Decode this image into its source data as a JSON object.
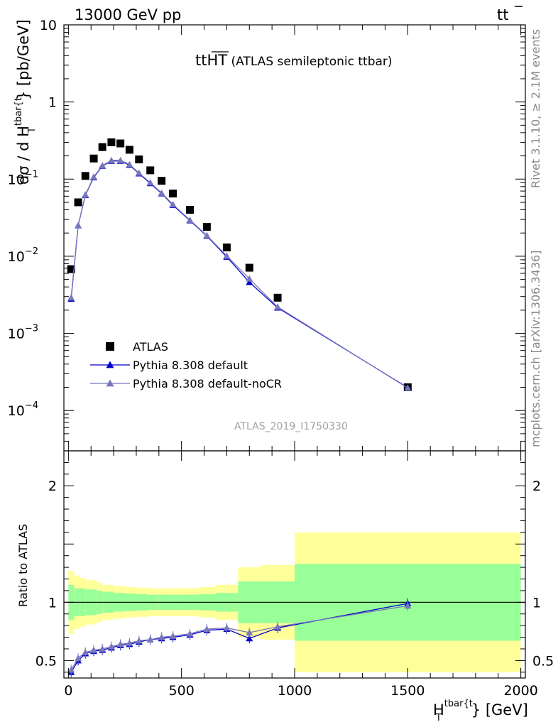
{
  "header": {
    "left": "13000 GeV pp",
    "right_main": "tt",
    "right_bar": "t"
  },
  "main_panel": {
    "title_prefix": "tt",
    "title_overline": "HT",
    "title_suffix": " (ATLAS semileptonic ttbar)",
    "ylabel": "dσ / d H",
    "ylabel_sub": "T",
    "ylabel_sup": "tbar{t",
    "ylabel_tail": "} [pb/GeV]",
    "y_ticks": [
      {
        "value": 10,
        "label": "10"
      },
      {
        "value": 1,
        "label": "1"
      },
      {
        "value": 0.1,
        "label": "10",
        "exp": "−1"
      },
      {
        "value": 0.01,
        "label": "10",
        "exp": "−2"
      },
      {
        "value": 0.001,
        "label": "10",
        "exp": "−3"
      },
      {
        "value": 0.0001,
        "label": "10",
        "exp": "−4"
      }
    ],
    "watermark": "ATLAS_2019_I1750330"
  },
  "side_labels": {
    "top": "Rivet 3.1.10, ≥ 2.1M events",
    "bottom": "mcplots.cern.ch [arXiv:1306.3436]"
  },
  "legend": {
    "position": "bottom-left",
    "entries": [
      {
        "label": "ATLAS"
      },
      {
        "label": "Pythia 8.308 default"
      },
      {
        "label": "Pythia 8.308 default-noCR"
      }
    ]
  },
  "ratio_panel": {
    "ylabel": "Ratio to ATLAS",
    "y_ticks": [
      {
        "value": 0.5,
        "label": "0.5"
      },
      {
        "value": 1,
        "label": "1"
      },
      {
        "value": 2,
        "label": "2"
      }
    ]
  },
  "x_axis": {
    "label_main": "H",
    "label_sub": "T",
    "label_sup": "tbar{t",
    "label_tail": "} [GeV]",
    "ticks": [
      {
        "value": 0,
        "label": "0"
      },
      {
        "value": 500,
        "label": "500"
      },
      {
        "value": 1000,
        "label": "1000"
      },
      {
        "value": 1500,
        "label": "1500"
      },
      {
        "value": 2000,
        "label": "2000"
      }
    ]
  },
  "colors": {
    "data": "#000000",
    "default": "#0000cc",
    "nocr": "#7777bb",
    "band_inner": "#99ff99",
    "band_outer": "#ffff99"
  },
  "chart_data": {
    "type": "scatter",
    "x_range": [
      -20,
      2020
    ],
    "y_range": [
      3e-05,
      10
    ],
    "y_scale": "log",
    "ratio_range": [
      0.35,
      2.3
    ],
    "bins": [
      {
        "lo": 0,
        "hi": 25
      },
      {
        "lo": 25,
        "hi": 50
      },
      {
        "lo": 50,
        "hi": 75
      },
      {
        "lo": 75,
        "hi": 125
      },
      {
        "lo": 125,
        "hi": 150
      },
      {
        "lo": 150,
        "hi": 200
      },
      {
        "lo": 200,
        "hi": 250
      },
      {
        "lo": 250,
        "hi": 300
      },
      {
        "lo": 300,
        "hi": 350
      },
      {
        "lo": 350,
        "hi": 400
      },
      {
        "lo": 400,
        "hi": 450
      },
      {
        "lo": 450,
        "hi": 500
      },
      {
        "lo": 500,
        "hi": 575
      },
      {
        "lo": 575,
        "hi": 650
      },
      {
        "lo": 650,
        "hi": 750
      },
      {
        "lo": 750,
        "hi": 850
      },
      {
        "lo": 850,
        "hi": 1000
      },
      {
        "lo": 1000,
        "hi": 2000
      }
    ],
    "series": [
      {
        "name": "ATLAS",
        "style": "data",
        "x": [
          12,
          43,
          75,
          112,
          150,
          190,
          230,
          270,
          312,
          362,
          412,
          462,
          537,
          612,
          700,
          800,
          925,
          1500
        ],
        "y": [
          0.0068,
          0.05,
          0.11,
          0.185,
          0.26,
          0.3,
          0.29,
          0.24,
          0.18,
          0.13,
          0.095,
          0.065,
          0.04,
          0.024,
          0.013,
          0.0071,
          0.0029,
          0.0002
        ]
      },
      {
        "name": "Pythia 8.308 default",
        "style": "default",
        "x": [
          12,
          43,
          75,
          112,
          150,
          190,
          230,
          270,
          312,
          362,
          412,
          462,
          537,
          612,
          700,
          800,
          925,
          1500
        ],
        "y": [
          0.0028,
          0.025,
          0.062,
          0.105,
          0.148,
          0.172,
          0.172,
          0.152,
          0.118,
          0.088,
          0.065,
          0.046,
          0.029,
          0.0183,
          0.0098,
          0.0046,
          0.00215,
          0.000198
        ],
        "ratio": [
          0.4,
          0.5,
          0.56,
          0.58,
          0.59,
          0.61,
          0.63,
          0.64,
          0.66,
          0.68,
          0.69,
          0.7,
          0.72,
          0.76,
          0.77,
          0.69,
          0.78,
          0.99
        ]
      },
      {
        "name": "Pythia 8.308 default-noCR",
        "style": "nocr",
        "x": [
          12,
          43,
          75,
          112,
          150,
          190,
          230,
          270,
          312,
          362,
          412,
          462,
          537,
          612,
          700,
          800,
          925,
          1500
        ],
        "y": [
          0.0029,
          0.025,
          0.063,
          0.107,
          0.15,
          0.175,
          0.175,
          0.155,
          0.12,
          0.09,
          0.066,
          0.047,
          0.0295,
          0.0186,
          0.0101,
          0.0051,
          0.0022,
          0.000196
        ],
        "ratio": [
          0.42,
          0.52,
          0.57,
          0.59,
          0.6,
          0.62,
          0.64,
          0.65,
          0.67,
          0.68,
          0.7,
          0.71,
          0.73,
          0.77,
          0.78,
          0.74,
          0.79,
          0.97
        ]
      }
    ],
    "ratio_band_inner": [
      0.15,
      0.12,
      0.12,
      0.11,
      0.1,
      0.09,
      0.08,
      0.075,
      0.07,
      0.065,
      0.065,
      0.065,
      0.065,
      0.07,
      0.08,
      0.18,
      0.18,
      0.33
    ],
    "ratio_band_outer": [
      0.27,
      0.23,
      0.21,
      0.19,
      0.17,
      0.15,
      0.14,
      0.13,
      0.125,
      0.12,
      0.12,
      0.12,
      0.12,
      0.13,
      0.15,
      0.3,
      0.32,
      0.6
    ]
  }
}
